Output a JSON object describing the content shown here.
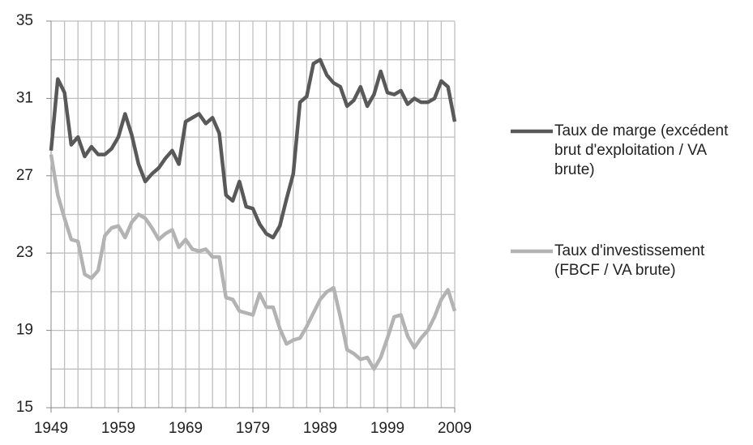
{
  "chart_data": {
    "type": "line",
    "x": [
      1949,
      1950,
      1951,
      1952,
      1953,
      1954,
      1955,
      1956,
      1957,
      1958,
      1959,
      1960,
      1961,
      1962,
      1963,
      1964,
      1965,
      1966,
      1967,
      1968,
      1969,
      1970,
      1971,
      1972,
      1973,
      1974,
      1975,
      1976,
      1977,
      1978,
      1979,
      1980,
      1981,
      1982,
      1983,
      1984,
      1985,
      1986,
      1987,
      1988,
      1989,
      1990,
      1991,
      1992,
      1993,
      1994,
      1995,
      1996,
      1997,
      1998,
      1999,
      2000,
      2001,
      2002,
      2003,
      2004,
      2005,
      2006,
      2007,
      2008,
      2009
    ],
    "series": [
      {
        "name": "Taux de marge (excédent brut d'exploitation / VA brute)",
        "color": "#595959",
        "values": [
          28.3,
          32.0,
          31.3,
          28.6,
          29.0,
          28.0,
          28.5,
          28.1,
          28.1,
          28.4,
          29.0,
          30.2,
          29.1,
          27.6,
          26.7,
          27.1,
          27.4,
          27.9,
          28.3,
          27.6,
          29.8,
          30.0,
          30.2,
          29.7,
          30.0,
          29.2,
          26.0,
          25.7,
          26.7,
          25.4,
          25.3,
          24.5,
          24.0,
          23.8,
          24.4,
          25.8,
          27.1,
          30.8,
          31.1,
          32.8,
          33.0,
          32.2,
          31.8,
          31.6,
          30.6,
          30.9,
          31.6,
          30.6,
          31.2,
          32.4,
          31.3,
          31.2,
          31.4,
          30.7,
          31.0,
          30.8,
          30.8,
          31.0,
          31.9,
          31.6,
          29.8
        ]
      },
      {
        "name": "Taux d'investissement (FBCF / VA brute)",
        "color": "#b3b3b3",
        "values": [
          28.1,
          26.0,
          24.8,
          23.7,
          23.6,
          21.9,
          21.7,
          22.1,
          23.9,
          24.3,
          24.4,
          23.8,
          24.6,
          25.0,
          24.8,
          24.3,
          23.7,
          24.0,
          24.2,
          23.3,
          23.7,
          23.2,
          23.1,
          23.2,
          22.8,
          22.8,
          20.7,
          20.6,
          20.0,
          19.9,
          19.8,
          20.9,
          20.2,
          20.2,
          19.1,
          18.3,
          18.5,
          18.6,
          19.2,
          19.9,
          20.6,
          21.0,
          21.2,
          19.7,
          18.0,
          17.8,
          17.5,
          17.6,
          17.0,
          17.6,
          18.6,
          19.7,
          19.8,
          18.7,
          18.1,
          18.6,
          19.0,
          19.7,
          20.6,
          21.1,
          20.0
        ]
      }
    ],
    "xlim": [
      1949,
      2009
    ],
    "xticks": [
      1949,
      1959,
      1969,
      1979,
      1989,
      1999,
      2009
    ],
    "ylim": [
      15,
      35
    ],
    "yticks": [
      15,
      19,
      23,
      27,
      31,
      35
    ],
    "grid": true,
    "legend": "right"
  }
}
